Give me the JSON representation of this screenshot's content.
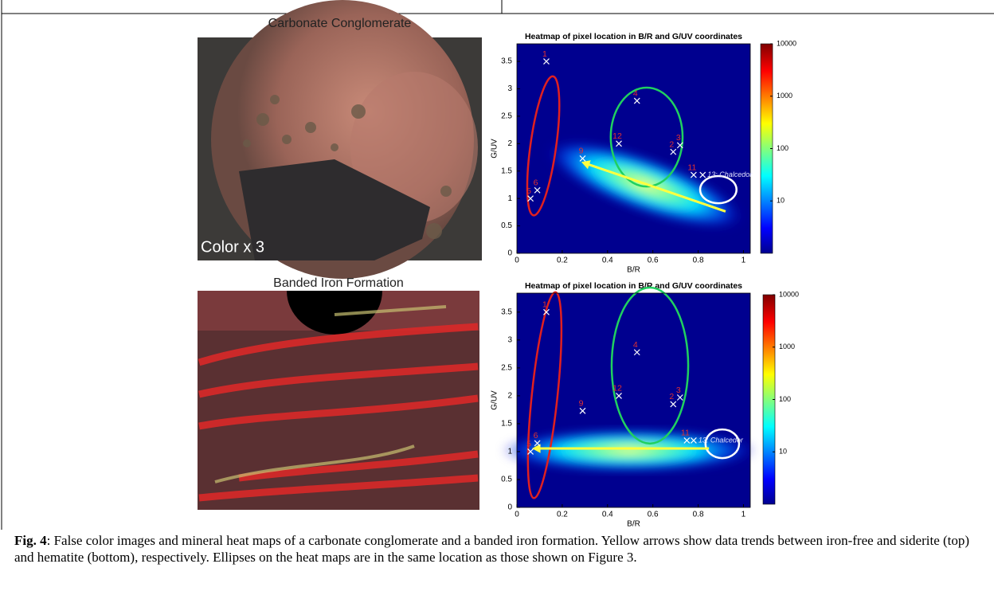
{
  "figure": {
    "panels": [
      {
        "photo_title": "Carbonate Conglomerate",
        "photo_label": "Color x 3",
        "heatmap": {
          "title": "Heatmap of pixel location in B/R and G/UV coordinates",
          "x_label": "B/R",
          "y_label": "G/UV",
          "xlim": [
            0,
            1.03
          ],
          "ylim": [
            0,
            3.82
          ],
          "xticks": [
            0,
            0.2,
            0.4,
            0.6,
            0.8,
            1
          ],
          "yticks": [
            0,
            0.5,
            1,
            1.5,
            2,
            2.5,
            3,
            3.5
          ],
          "colorbar": {
            "scale": "log",
            "lim": [
              1,
              10000
            ],
            "ticks": [
              10,
              100,
              1000,
              10000
            ]
          },
          "points": [
            {
              "label": "1",
              "x": 0.13,
              "y": 3.5
            },
            {
              "label": "4",
              "x": 0.53,
              "y": 2.78
            },
            {
              "label": "12",
              "x": 0.45,
              "y": 2.0
            },
            {
              "label": "9",
              "x": 0.29,
              "y": 1.73
            },
            {
              "label": "2",
              "x": 0.69,
              "y": 1.85
            },
            {
              "label": "3",
              "x": 0.72,
              "y": 1.97
            },
            {
              "label": "11",
              "x": 0.78,
              "y": 1.43
            },
            {
              "label": "13: Chalcedor",
              "x": 0.82,
              "y": 1.43
            },
            {
              "label": "5",
              "x": 0.06,
              "y": 1.0
            },
            {
              "label": "6",
              "x": 0.09,
              "y": 1.15
            }
          ]
        }
      },
      {
        "photo_title": "Banded Iron Formation",
        "heatmap": {
          "title": "Heatmap of pixel location in B/R and G/UV coordinates",
          "x_label": "B/R",
          "y_label": "G/UV",
          "xlim": [
            0,
            1.03
          ],
          "ylim": [
            0,
            3.84
          ],
          "xticks": [
            0,
            0.2,
            0.4,
            0.6,
            0.8,
            1
          ],
          "yticks": [
            0,
            0.5,
            1,
            1.5,
            2,
            2.5,
            3,
            3.5
          ],
          "colorbar": {
            "scale": "log",
            "lim": [
              1,
              10000
            ],
            "ticks": [
              10,
              100,
              1000,
              10000
            ]
          },
          "points": [
            {
              "label": "1",
              "x": 0.13,
              "y": 3.5
            },
            {
              "label": "4",
              "x": 0.53,
              "y": 2.78
            },
            {
              "label": "12",
              "x": 0.45,
              "y": 2.0
            },
            {
              "label": "9",
              "x": 0.29,
              "y": 1.73
            },
            {
              "label": "2",
              "x": 0.69,
              "y": 1.85
            },
            {
              "label": "3",
              "x": 0.72,
              "y": 1.97
            },
            {
              "label": "11",
              "x": 0.75,
              "y": 1.2
            },
            {
              "label": "13: Chalcedor",
              "x": 0.78,
              "y": 1.2
            },
            {
              "label": "5",
              "x": 0.06,
              "y": 1.0
            },
            {
              "label": "6",
              "x": 0.09,
              "y": 1.15
            }
          ]
        }
      }
    ]
  },
  "caption": {
    "label": "Fig. 4",
    "text": ": False color images and mineral heat maps  of a carbonate conglomerate and a banded iron formation. Yellow arrows show data trends between iron-free and siderite (top) and hematite (bottom), respectively. Ellipses on the heat maps are in the same location as those shown on Figure 3."
  }
}
